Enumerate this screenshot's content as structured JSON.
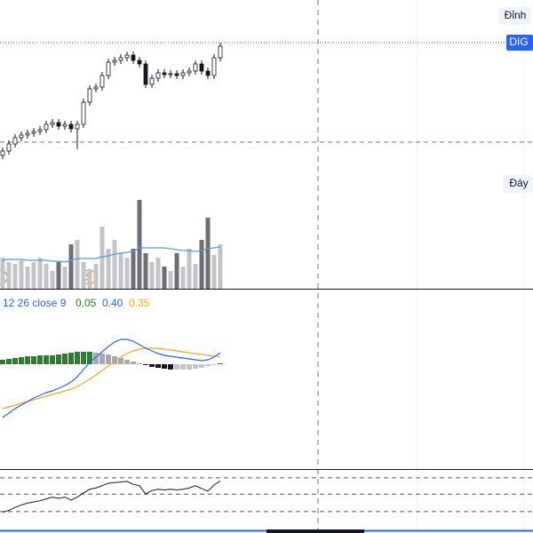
{
  "labels": {
    "peak": "Đỉnh",
    "ticker": "DIG",
    "trough": "Đáy",
    "macd_params": "12 26 close 9",
    "macd_hist": "0.05",
    "macd_line": "0.40",
    "macd_signal": "0.35",
    "marker": "S"
  },
  "price": {
    "type": "candlestick",
    "ylim": [
      0,
      325
    ],
    "open": [
      150,
      155,
      163,
      170,
      173,
      175,
      177,
      179,
      185,
      187,
      183,
      185,
      180,
      185,
      210,
      225,
      227,
      240,
      255,
      257,
      260,
      263,
      257,
      253,
      230,
      237,
      243,
      241,
      242,
      240,
      243,
      245,
      253,
      245,
      240,
      260
    ],
    "high": [
      159,
      167,
      174,
      177,
      179,
      181,
      183,
      189,
      191,
      191,
      189,
      189,
      189,
      214,
      229,
      231,
      244,
      259,
      261,
      264,
      267,
      267,
      261,
      257,
      241,
      247,
      247,
      246,
      246,
      247,
      249,
      257,
      257,
      249,
      264,
      277
    ],
    "low": [
      146,
      151,
      159,
      166,
      169,
      171,
      173,
      175,
      181,
      179,
      179,
      176,
      157,
      181,
      206,
      221,
      223,
      236,
      251,
      253,
      256,
      253,
      249,
      226,
      226,
      233,
      237,
      237,
      236,
      236,
      239,
      241,
      241,
      236,
      236,
      256
    ],
    "close": [
      155,
      163,
      170,
      173,
      175,
      177,
      179,
      185,
      187,
      183,
      185,
      180,
      185,
      210,
      225,
      227,
      240,
      255,
      257,
      260,
      263,
      257,
      253,
      230,
      237,
      243,
      241,
      242,
      240,
      243,
      245,
      253,
      245,
      240,
      260,
      273
    ],
    "up_color": "#ffffff",
    "down_color": "#131722"
  },
  "volume": {
    "type": "bar",
    "ylim": [
      0,
      325
    ],
    "values": [
      35,
      30,
      28,
      32,
      25,
      30,
      35,
      28,
      20,
      30,
      25,
      50,
      55,
      30,
      22,
      28,
      70,
      45,
      55,
      40,
      35,
      45,
      100,
      40,
      30,
      35,
      25,
      20,
      40,
      25,
      45,
      28,
      55,
      80,
      38,
      50
    ],
    "ma": [
      32,
      33,
      33,
      33,
      32,
      32,
      32,
      32,
      31,
      31,
      30,
      32,
      34,
      34,
      34,
      34,
      36,
      37,
      39,
      40,
      41,
      42,
      46,
      46,
      46,
      46,
      46,
      45,
      44,
      43,
      43,
      42,
      43,
      45,
      46,
      47
    ],
    "up_color": "#c4c4c8",
    "down_color": "#6e6e76",
    "ma_color": "#5b9bd5"
  },
  "macd": {
    "type": "line",
    "ylim": [
      -118,
      84
    ],
    "macd": [
      -60,
      -55,
      -50,
      -46,
      -42,
      -38,
      -35,
      -32,
      -30,
      -27,
      -24,
      -20,
      -14,
      -6,
      2,
      8,
      14,
      20,
      25,
      28,
      28,
      26,
      22,
      18,
      15,
      12,
      10,
      9,
      8,
      7,
      6,
      5,
      4,
      5,
      8,
      13
    ],
    "signal": [
      -50,
      -48,
      -46,
      -44,
      -42,
      -40,
      -38,
      -36,
      -34,
      -32,
      -30,
      -28,
      -25,
      -21,
      -17,
      -12,
      -7,
      -2,
      3,
      8,
      12,
      15,
      17,
      18,
      18,
      18,
      17,
      16,
      15,
      14,
      13,
      12,
      11,
      10,
      9,
      9
    ],
    "hist": [
      5,
      6,
      7,
      8,
      9,
      9,
      10,
      10,
      10,
      11,
      12,
      13,
      14,
      14,
      14,
      13,
      12,
      11,
      9,
      7,
      5,
      3,
      1,
      -1,
      -3,
      -4,
      -5,
      -6,
      -6,
      -6,
      -6,
      -5,
      -4,
      -2,
      -1,
      1
    ],
    "macd_color": "#2962ff",
    "signal_color": "#f5a623",
    "rise_color": "#2e7d32",
    "fall_color": "#a8a8ad",
    "neg_color": "#131722",
    "neg_rise_color": "#c4c4c8"
  },
  "rsi": {
    "type": "line",
    "ylim": [
      0,
      100
    ],
    "levels": [
      87,
      60,
      31
    ],
    "values": [
      30,
      33,
      38,
      42,
      45,
      47,
      49,
      52,
      55,
      53,
      55,
      50,
      55,
      62,
      68,
      70,
      74,
      78,
      79,
      80,
      81,
      76,
      74,
      60,
      66,
      68,
      67,
      68,
      67,
      68,
      70,
      74,
      69,
      65,
      75,
      82
    ],
    "color": "#131722"
  }
}
